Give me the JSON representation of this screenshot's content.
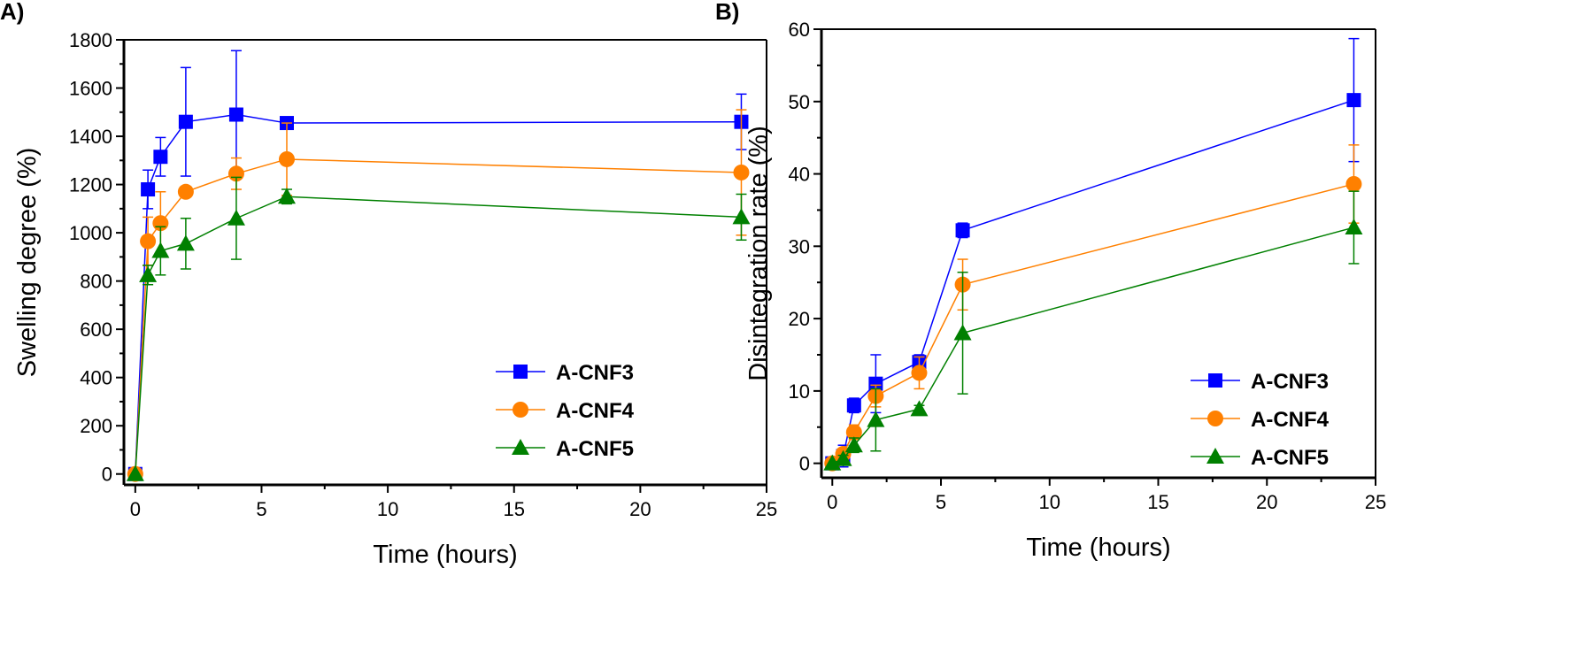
{
  "chart_data": [
    {
      "type": "line",
      "panel_label": "A)",
      "title": "",
      "xlabel": "Time (hours)",
      "ylabel": "Swelling degree (%)",
      "xlim": [
        -0.45,
        25
      ],
      "ylim": [
        -45,
        1800
      ],
      "xticks": [
        0,
        5,
        10,
        15,
        20,
        25
      ],
      "yticks": [
        0,
        200,
        400,
        600,
        800,
        1000,
        1200,
        1400,
        1600,
        1800
      ],
      "legend_position": "bottom-right",
      "x": [
        0,
        0.5,
        1,
        2,
        4,
        6,
        24
      ],
      "series": [
        {
          "name": "A-CNF3",
          "color": "#0000ff",
          "marker": "square",
          "values": [
            0,
            1180,
            1315,
            1460,
            1490,
            1455,
            1460
          ],
          "errors": [
            0,
            80,
            80,
            225,
            265,
            10,
            115
          ]
        },
        {
          "name": "A-CNF4",
          "color": "#ff8000",
          "marker": "circle",
          "values": [
            0,
            965,
            1040,
            1170,
            1245,
            1305,
            1250
          ],
          "errors": [
            0,
            100,
            130,
            10,
            65,
            150,
            260
          ]
        },
        {
          "name": "A-CNF5",
          "color": "#008000",
          "marker": "triangle",
          "values": [
            0,
            825,
            925,
            955,
            1060,
            1150,
            1065
          ],
          "errors": [
            0,
            40,
            100,
            105,
            170,
            30,
            95
          ]
        }
      ]
    },
    {
      "type": "line",
      "panel_label": "B)",
      "title": "",
      "xlabel": "Time (hours)",
      "ylabel": "Disintegration rate (%)",
      "xlim": [
        -0.5,
        25
      ],
      "ylim": [
        -2,
        60
      ],
      "xticks": [
        0,
        5,
        10,
        15,
        20,
        25
      ],
      "yticks": [
        0,
        10,
        20,
        30,
        40,
        50,
        60
      ],
      "legend_position": "bottom-right",
      "x": [
        0,
        0.5,
        1,
        2,
        4,
        6,
        24
      ],
      "series": [
        {
          "name": "A-CNF3",
          "color": "#0000ff",
          "marker": "square",
          "values": [
            0,
            1,
            8,
            11,
            14,
            32.2,
            50.2
          ],
          "errors": [
            0,
            1.5,
            1,
            4,
            1,
            1,
            8.5
          ]
        },
        {
          "name": "A-CNF4",
          "color": "#ff8000",
          "marker": "circle",
          "values": [
            0,
            1.3,
            4.3,
            9.3,
            12.5,
            24.7,
            38.6
          ],
          "errors": [
            0,
            0.5,
            1,
            1.5,
            2.2,
            3.5,
            5.4
          ]
        },
        {
          "name": "A-CNF5",
          "color": "#008000",
          "marker": "triangle",
          "values": [
            0,
            0.6,
            2.5,
            6,
            7.5,
            18,
            32.6
          ],
          "errors": [
            0,
            0.5,
            1,
            4.3,
            0.5,
            8.4,
            5
          ]
        }
      ]
    }
  ]
}
